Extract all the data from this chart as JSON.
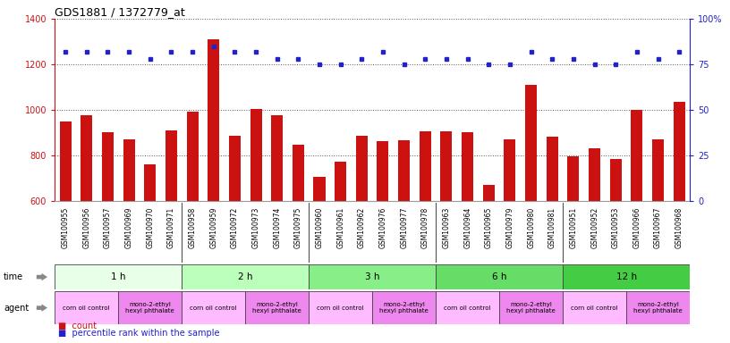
{
  "title": "GDS1881 / 1372779_at",
  "samples": [
    "GSM100955",
    "GSM100956",
    "GSM100957",
    "GSM100969",
    "GSM100970",
    "GSM100971",
    "GSM100958",
    "GSM100959",
    "GSM100972",
    "GSM100973",
    "GSM100974",
    "GSM100975",
    "GSM100960",
    "GSM100961",
    "GSM100962",
    "GSM100976",
    "GSM100977",
    "GSM100978",
    "GSM100963",
    "GSM100964",
    "GSM100965",
    "GSM100979",
    "GSM100980",
    "GSM100981",
    "GSM100951",
    "GSM100952",
    "GSM100953",
    "GSM100966",
    "GSM100967",
    "GSM100968"
  ],
  "counts": [
    950,
    975,
    900,
    870,
    760,
    910,
    990,
    1310,
    885,
    1005,
    975,
    845,
    705,
    770,
    885,
    860,
    865,
    905,
    905,
    900,
    670,
    870,
    1110,
    880,
    795,
    830,
    785,
    1000,
    870,
    1035
  ],
  "percentiles": [
    82,
    82,
    82,
    82,
    78,
    82,
    82,
    85,
    82,
    82,
    78,
    78,
    75,
    75,
    78,
    82,
    75,
    78,
    78,
    78,
    75,
    75,
    82,
    78,
    78,
    75,
    75,
    82,
    78,
    82
  ],
  "ylim_left": [
    600,
    1400
  ],
  "ylim_right": [
    0,
    100
  ],
  "yticks_left": [
    600,
    800,
    1000,
    1200,
    1400
  ],
  "yticks_right": [
    0,
    25,
    50,
    75,
    100
  ],
  "time_groups": [
    {
      "label": "1 h",
      "start": 0,
      "end": 6,
      "color": "#e8ffe8"
    },
    {
      "label": "2 h",
      "start": 6,
      "end": 12,
      "color": "#bbffbb"
    },
    {
      "label": "3 h",
      "start": 12,
      "end": 18,
      "color": "#88ee88"
    },
    {
      "label": "6 h",
      "start": 18,
      "end": 24,
      "color": "#66dd66"
    },
    {
      "label": "12 h",
      "start": 24,
      "end": 30,
      "color": "#44cc44"
    }
  ],
  "agent_groups": [
    {
      "label": "corn oil control",
      "start": 0,
      "end": 3,
      "color": "#ffbbff"
    },
    {
      "label": "mono-2-ethyl\nhexyl phthalate",
      "start": 3,
      "end": 6,
      "color": "#ee88ee"
    },
    {
      "label": "corn oil control",
      "start": 6,
      "end": 9,
      "color": "#ffbbff"
    },
    {
      "label": "mono-2-ethyl\nhexyl phthalate",
      "start": 9,
      "end": 12,
      "color": "#ee88ee"
    },
    {
      "label": "corn oil control",
      "start": 12,
      "end": 15,
      "color": "#ffbbff"
    },
    {
      "label": "mono-2-ethyl\nhexyl phthalate",
      "start": 15,
      "end": 18,
      "color": "#ee88ee"
    },
    {
      "label": "corn oil control",
      "start": 18,
      "end": 21,
      "color": "#ffbbff"
    },
    {
      "label": "mono-2-ethyl\nhexyl phthalate",
      "start": 21,
      "end": 24,
      "color": "#ee88ee"
    },
    {
      "label": "corn oil control",
      "start": 24,
      "end": 27,
      "color": "#ffbbff"
    },
    {
      "label": "mono-2-ethyl\nhexyl phthalate",
      "start": 27,
      "end": 30,
      "color": "#ee88ee"
    }
  ],
  "bar_color": "#cc1111",
  "dot_color": "#2222cc",
  "grid_color": "#555555",
  "bg_color": "#ffffff",
  "label_color_left": "#cc1111",
  "label_color_right": "#2222cc",
  "legend_count_color": "#cc1111",
  "legend_percentile_color": "#2222cc",
  "xlabels_bg": "#d8d8d8",
  "arrow_color": "#888888"
}
